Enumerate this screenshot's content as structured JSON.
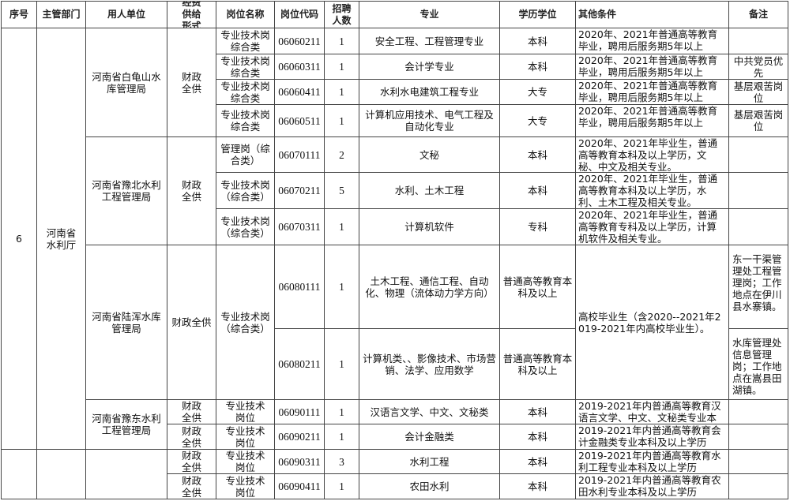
{
  "table": {
    "headers": [
      "序号",
      "主管部门",
      "用人单位",
      "经费供给形式",
      "岗位名称",
      "岗位代码",
      "招聘人数",
      "专业",
      "学历学位",
      "其他条件",
      "备注"
    ],
    "rows": [
      {
        "seq": "6",
        "dept": "河南省水利厅",
        "unit": "河南省白龟山水库管理局",
        "funding": "财政全供",
        "post": "专业技术岗综合类",
        "code": "06060211",
        "count": "1",
        "major": "安全工程、工程管理专业",
        "degree": "本科",
        "other": "2020年、2021年普通高等教育毕业，聘用后服务期5年以上",
        "note": ""
      },
      {
        "seq": "",
        "dept": "",
        "unit": "",
        "funding": "",
        "post": "专业技术岗综合类",
        "code": "06060311",
        "count": "1",
        "major": "会计学专业",
        "degree": "本科",
        "other": "2020年、2021年普通高等教育毕业，聘用后服务期5年以上",
        "note": "中共党员优先"
      },
      {
        "seq": "",
        "dept": "",
        "unit": "",
        "funding": "",
        "post": "专业技术岗综合类",
        "code": "06060411",
        "count": "1",
        "major": "水利水电建筑工程专业",
        "degree": "大专",
        "other": "2020年、2021年普通高等教育毕业，聘用后服务期5年以上",
        "note": "基层艰苦岗位"
      },
      {
        "seq": "",
        "dept": "",
        "unit": "",
        "funding": "",
        "post": "专业技术岗综合类",
        "code": "06060511",
        "count": "1",
        "major": "计算机应用技术、电气工程及自动化专业",
        "degree": "大专",
        "other": "2020年、2021年普通高等教育毕业，聘用后服务期5年以上",
        "note": "基层艰苦岗位"
      },
      {
        "seq": "",
        "dept": "",
        "unit": "河南省豫北水利工程管理局",
        "funding": "财政全供",
        "post": "管理岗（综合类）",
        "code": "06070111",
        "count": "2",
        "major": "文秘",
        "degree": "本科",
        "other": "2020年、2021年毕业生，普通高等教育本科及以上学历，文秘、中文及相关专业。",
        "note": ""
      },
      {
        "seq": "",
        "dept": "",
        "unit": "",
        "funding": "",
        "post": "专业技术岗（综合类）",
        "code": "06070211",
        "count": "5",
        "major": "水利、土木工程",
        "degree": "本科",
        "other": "2020年、2021年毕业生，普通高等教育本科及以上学历，水利、土木工程及相关专业。",
        "note": ""
      },
      {
        "seq": "",
        "dept": "",
        "unit": "",
        "funding": "",
        "post": "专业技术岗（综合类）",
        "code": "06070311",
        "count": "1",
        "major": "计算机软件",
        "degree": "专科",
        "other": "2020年、2021年毕业生，普通高等教育专科及以上学历，计算机软件及相关专业。",
        "note": ""
      },
      {
        "seq": "",
        "dept": "",
        "unit": "河南省陆浑水库管理局",
        "funding": "财政全供",
        "post": "专业技术岗（综合类）",
        "code": "06080111",
        "count": "1",
        "major": "土木工程、通信工程、自动化、物理（流体动力学方向）",
        "degree": "普通高等教育本科及以上",
        "other": "高校毕业生（含2020--2021年2019-2021年内高校毕业生）。",
        "note": "东一干渠管理处工程管理岗；工作地点在伊川县水寨镇。"
      },
      {
        "seq": "",
        "dept": "",
        "unit": "",
        "funding": "",
        "post": "",
        "code": "06080211",
        "count": "1",
        "major": "计算机类、、影像技术、市场营销、法学、应用数学",
        "degree": "普通高等教育本科及以上",
        "other": "",
        "note": "水库管理处信息管理岗；工作地点在嵩县田湖镇。"
      },
      {
        "seq": "",
        "dept": "",
        "unit": "河南省豫东水利工程管理局",
        "funding": "财政全供",
        "post": "专业技术岗位",
        "code": "06090111",
        "count": "1",
        "major": "汉语言文学、中文、文秘类",
        "degree": "本科",
        "other": "2019-2021年内普通高等教育汉语言文学、中文、文秘类专业本科及",
        "note": ""
      },
      {
        "seq": "",
        "dept": "",
        "unit": "",
        "funding": "财政全供",
        "post": "专业技术岗位",
        "code": "06090211",
        "count": "1",
        "major": "会计金融类",
        "degree": "本科",
        "other": "2019-2021年内普通高等教育会计金融类专业本科及以上学历",
        "note": ""
      },
      {
        "seq": "",
        "dept": "",
        "unit": "",
        "funding": "财政全供",
        "post": "专业技术岗位",
        "code": "06090311",
        "count": "3",
        "major": "水利工程",
        "degree": "本科",
        "other": "2019-2021年内普通高等教育水利工程专业本科及以上学历",
        "note": ""
      },
      {
        "seq": "",
        "dept": "",
        "unit": "",
        "funding": "财政全供",
        "post": "专业技术岗位",
        "code": "06090411",
        "count": "1",
        "major": "农田水利",
        "degree": "本科",
        "other": "2019-2021年内普通高等教育农田水利专业本科及以上学历",
        "note": ""
      }
    ]
  }
}
